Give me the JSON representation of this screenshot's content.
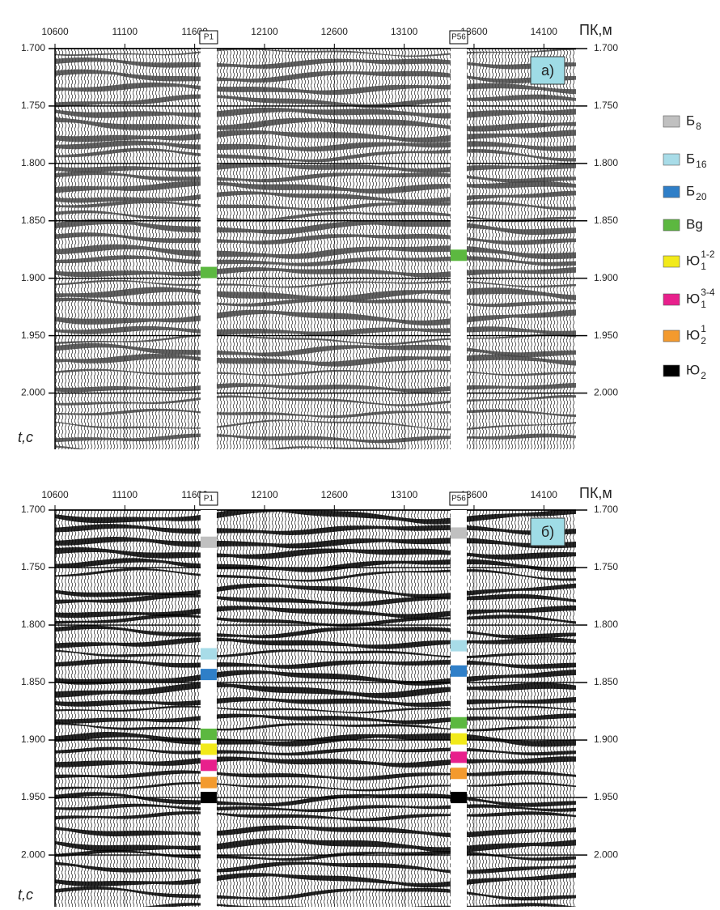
{
  "chart_data": [
    {
      "type": "seismic",
      "panel_label": "а)",
      "x_label": "ПК,м",
      "y_label": "t,c",
      "xlim": [
        10600,
        14330
      ],
      "xticks": [
        10600,
        11100,
        11600,
        12100,
        12600,
        13100,
        13600,
        14100
      ],
      "ylim": [
        1.7,
        2.049
      ],
      "yticks": [
        {
          "value": 1.7,
          "label": "1.700"
        },
        {
          "value": 1.75,
          "label": "1.750"
        },
        {
          "value": 1.8,
          "label": "1.800"
        },
        {
          "value": 1.85,
          "label": "1.850"
        },
        {
          "value": 1.9,
          "label": "1.900"
        },
        {
          "value": 1.95,
          "label": "1.950"
        },
        {
          "value": 2.0,
          "label": "2.000"
        }
      ],
      "grid": true,
      "wiggle_color": "#444444",
      "wells": [
        {
          "name": "P1",
          "x": 11700
        },
        {
          "name": "P56",
          "x": 13490
        }
      ],
      "series": [
        {
          "color": "#5cb840",
          "values": [
            1.895,
            1.88
          ]
        }
      ]
    },
    {
      "type": "seismic",
      "panel_label": "б)",
      "x_label": "ПК,м",
      "y_label": "t,c",
      "xlim": [
        10600,
        14330
      ],
      "xticks": [
        10600,
        11100,
        11600,
        12100,
        12600,
        13100,
        13600,
        14100
      ],
      "ylim": [
        1.7,
        2.045
      ],
      "yticks": [
        {
          "value": 1.7,
          "label": "1.700"
        },
        {
          "value": 1.75,
          "label": "1.750"
        },
        {
          "value": 1.8,
          "label": "1.800"
        },
        {
          "value": 1.85,
          "label": "1.850"
        },
        {
          "value": 1.9,
          "label": "1.900"
        },
        {
          "value": 1.95,
          "label": "1.950"
        },
        {
          "value": 2.0,
          "label": "2.000"
        }
      ],
      "grid": true,
      "wiggle_color": "#000000",
      "wells": [
        {
          "name": "P1",
          "x": 11700
        },
        {
          "name": "P56",
          "x": 13490
        }
      ],
      "series": [
        {
          "name": "Б",
          "sub": "8",
          "color": "#c0c0c0",
          "values": [
            1.728,
            1.72
          ]
        },
        {
          "name": "Б",
          "sub": "16",
          "color": "#a8dce8",
          "values": [
            1.825,
            1.818
          ]
        },
        {
          "name": "Б",
          "sub": "20",
          "color": "#2f7fc8",
          "values": [
            1.843,
            1.84
          ]
        },
        {
          "name": "Bg",
          "color": "#5cb840",
          "values": [
            1.895,
            1.885
          ]
        },
        {
          "name": "Ю",
          "sub": "1",
          "sup": "1-2",
          "color": "#f2ea1a",
          "values": [
            1.908,
            1.899
          ]
        },
        {
          "name": "Ю",
          "sub": "1",
          "sup": "3-4",
          "color": "#e8208c",
          "values": [
            1.922,
            1.915
          ]
        },
        {
          "name": "Ю",
          "sub": "2",
          "sup": "1",
          "color": "#f39a2e",
          "values": [
            1.937,
            1.929
          ]
        },
        {
          "name": "Ю",
          "sub": "2",
          "color": "#000000",
          "values": [
            1.95,
            1.95
          ]
        }
      ]
    }
  ]
}
